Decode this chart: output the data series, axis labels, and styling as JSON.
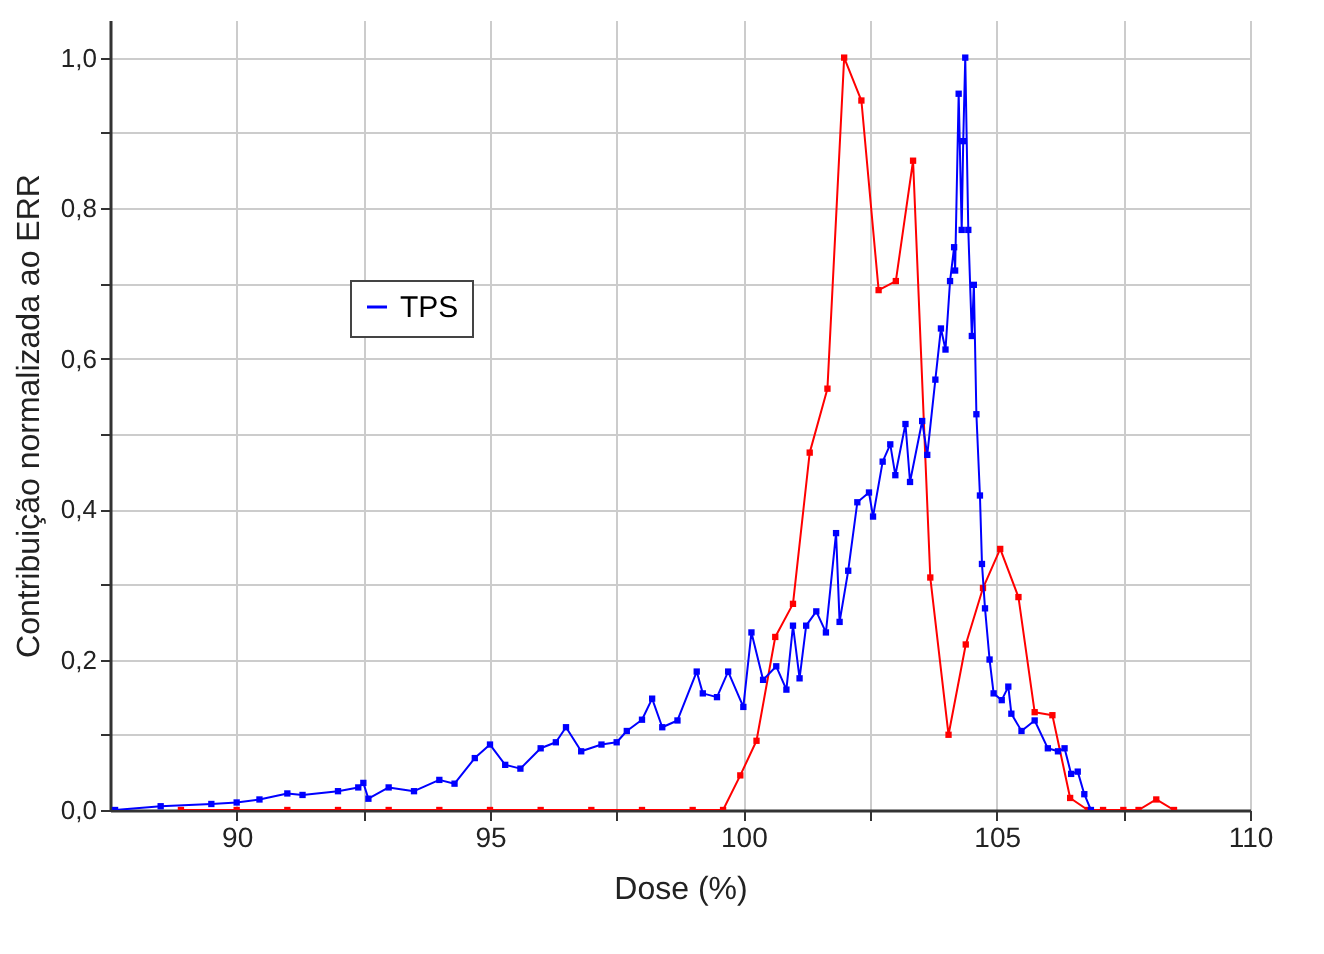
{
  "chart_data": {
    "type": "line",
    "xlabel": "Dose (%)",
    "ylabel": "Contribuição normalizada ao ERR",
    "xlim": [
      87.5,
      110
    ],
    "ylim": [
      0,
      1.05
    ],
    "xticks": [
      90,
      {
        "value": 92.5,
        "label": null
      },
      95,
      {
        "value": 97.5,
        "label": null
      },
      100,
      {
        "value": 102.5,
        "label": null
      },
      105,
      {
        "value": 107.5,
        "label": null
      },
      110
    ],
    "yticks": [
      {
        "value": 0,
        "label": "0,0"
      },
      {
        "value": 0.1,
        "label": null
      },
      {
        "value": 0.2,
        "label": "0,2"
      },
      {
        "value": 0.3,
        "label": null
      },
      {
        "value": 0.4,
        "label": "0,4"
      },
      {
        "value": 0.5,
        "label": null
      },
      {
        "value": 0.6,
        "label": "0,6"
      },
      {
        "value": 0.7,
        "label": null
      },
      {
        "value": 0.8,
        "label": "0,8"
      },
      {
        "value": 0.9,
        "label": null
      },
      {
        "value": 1.0,
        "label": "1,0"
      }
    ],
    "grid": true,
    "legend": "left",
    "marker": "square",
    "line_style": "solid",
    "series": [
      {
        "color": "#ff0000",
        "x": [
          88.9,
          90.0,
          91.0,
          92.0,
          93.0,
          94.0,
          95.0,
          96.0,
          97.0,
          98.0,
          99.0,
          99.6,
          99.94,
          100.26,
          100.63,
          100.98,
          101.31,
          101.66,
          101.99,
          102.33,
          102.67,
          103.01,
          103.35,
          103.69,
          104.05,
          104.39,
          104.73,
          105.07,
          105.43,
          105.75,
          106.1,
          106.45,
          106.8,
          107.1,
          107.5,
          107.8,
          108.15,
          108.5
        ],
        "values": [
          0,
          0,
          0,
          0,
          0,
          0,
          0,
          0,
          0,
          0,
          0,
          0,
          0.046,
          0.092,
          0.23,
          0.274,
          0.475,
          0.56,
          1.0,
          0.943,
          0.691,
          0.703,
          0.863,
          0.309,
          0.1,
          0.22,
          0.295,
          0.347,
          0.283,
          0.13,
          0.126,
          0.016,
          0,
          0,
          0,
          0,
          0.014,
          0
        ]
      },
      {
        "name": "TPS",
        "color": "#0000ff",
        "x": [
          87.6,
          88.5,
          89.5,
          90.0,
          90.45,
          91.0,
          91.3,
          92.0,
          92.4,
          92.5,
          92.6,
          93.0,
          93.5,
          94.0,
          94.3,
          94.7,
          95.0,
          95.3,
          95.6,
          96.0,
          96.3,
          96.5,
          96.8,
          97.2,
          97.5,
          97.7,
          98.0,
          98.2,
          98.4,
          98.7,
          99.08,
          99.2,
          99.48,
          99.7,
          100.0,
          100.16,
          100.39,
          100.65,
          100.85,
          100.98,
          101.11,
          101.24,
          101.44,
          101.63,
          101.83,
          101.9,
          102.07,
          102.25,
          102.48,
          102.56,
          102.75,
          102.9,
          103.0,
          103.2,
          103.29,
          103.53,
          103.63,
          103.79,
          103.9,
          103.99,
          104.08,
          104.16,
          104.18,
          104.25,
          104.31,
          104.34,
          104.38,
          104.44,
          104.51,
          104.55,
          104.6,
          104.67,
          104.71,
          104.77,
          104.86,
          104.94,
          105.1,
          105.23,
          105.29,
          105.49,
          105.75,
          106.01,
          106.21,
          106.34,
          106.47,
          106.6,
          106.73,
          106.86
        ],
        "values": [
          0.0,
          0.005,
          0.008,
          0.01,
          0.014,
          0.022,
          0.02,
          0.025,
          0.03,
          0.036,
          0.015,
          0.03,
          0.025,
          0.04,
          0.035,
          0.069,
          0.087,
          0.06,
          0.055,
          0.082,
          0.09,
          0.11,
          0.078,
          0.087,
          0.09,
          0.105,
          0.12,
          0.148,
          0.11,
          0.119,
          0.184,
          0.155,
          0.15,
          0.184,
          0.137,
          0.236,
          0.173,
          0.191,
          0.16,
          0.245,
          0.175,
          0.245,
          0.264,
          0.236,
          0.368,
          0.25,
          0.318,
          0.409,
          0.422,
          0.39,
          0.463,
          0.486,
          0.445,
          0.513,
          0.436,
          0.517,
          0.472,
          0.572,
          0.64,
          0.612,
          0.703,
          0.748,
          0.717,
          0.952,
          0.771,
          0.889,
          1.0,
          0.771,
          0.63,
          0.698,
          0.526,
          0.418,
          0.327,
          0.268,
          0.2,
          0.155,
          0.146,
          0.164,
          0.128,
          0.105,
          0.119,
          0.082,
          0.078,
          0.082,
          0.048,
          0.051,
          0.021,
          0.0
        ]
      }
    ]
  }
}
